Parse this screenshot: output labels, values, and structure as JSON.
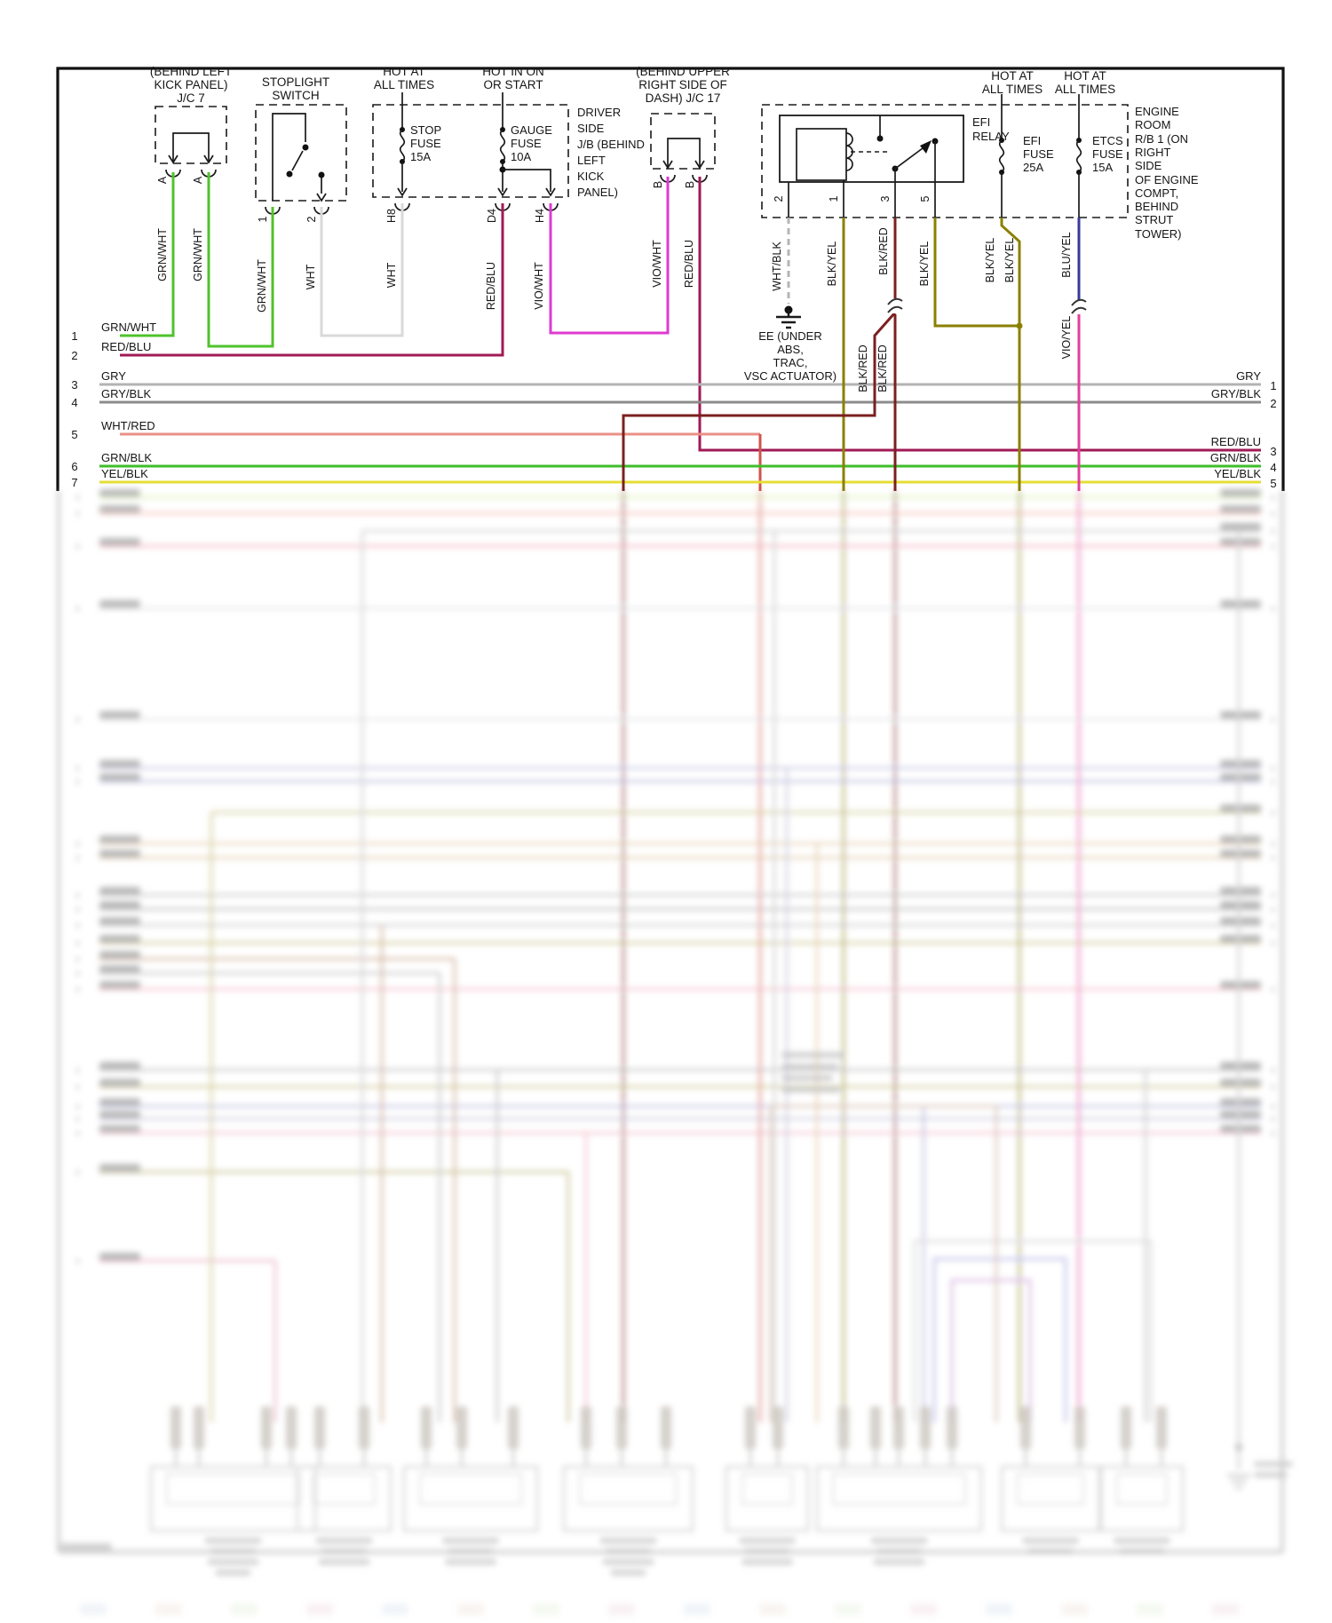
{
  "diagram": {
    "headers": {
      "jc7": [
        "(BEHIND LEFT",
        "KICK PANEL)",
        "J/C 7"
      ],
      "stoplight": [
        "STOPLIGHT",
        "SWITCH"
      ],
      "hot_stop": [
        "HOT AT",
        "ALL TIMES"
      ],
      "hot_gauge": [
        "HOT IN ON",
        "OR START"
      ],
      "jb": [
        "DRIVER",
        "SIDE",
        "J/B (BEHIND",
        "LEFT",
        "KICK",
        "PANEL)"
      ],
      "jc17": [
        "(BEHIND UPPER",
        "RIGHT SIDE OF",
        "DASH) J/C 17"
      ],
      "hot_efi": [
        "HOT AT",
        "ALL TIMES"
      ],
      "hot_etcs": [
        "HOT AT",
        "ALL TIMES"
      ],
      "efi_relay": [
        "EFI",
        "RELAY"
      ],
      "engine_room": [
        "ENGINE",
        "ROOM",
        "R/B 1 (ON",
        "RIGHT",
        "SIDE",
        "OF ENGINE",
        "COMPT,",
        "BEHIND",
        "STRUT",
        "TOWER)"
      ],
      "ee_ground": [
        "EE (UNDER",
        "ABS,",
        "TRAC,",
        "VSC ACTUATOR)"
      ]
    },
    "fuses": {
      "stop": [
        "STOP",
        "FUSE",
        "15A"
      ],
      "gauge": [
        "GAUGE",
        "FUSE",
        "10A"
      ],
      "efi": [
        "EFI",
        "FUSE",
        "25A"
      ],
      "etcs": [
        "ETCS",
        "FUSE",
        "15A"
      ]
    },
    "pins": {
      "jc7_a1": "A",
      "jc7_a2": "A",
      "sw_1": "1",
      "sw_2": "2",
      "h8": "H8",
      "d4": "D4",
      "h4": "H4",
      "jc17_b1": "B",
      "jc17_b2": "B",
      "relay_2": "2",
      "relay_1": "1",
      "relay_3": "3",
      "relay_5": "5"
    },
    "wires": {
      "grn_wht": "GRN/WHT",
      "wht": "WHT",
      "red_blu": "RED/BLU",
      "vio_wht": "VIO/WHT",
      "wht_blk": "WHT/BLK",
      "blk_yel": "BLK/YEL",
      "blk_red": "BLK/RED",
      "blu_yel": "BLU/YEL",
      "vio_yel": "VIO/YEL"
    },
    "rows_left": [
      {
        "n": "1",
        "label": "GRN/WHT"
      },
      {
        "n": "2",
        "label": "RED/BLU"
      },
      {
        "n": "3",
        "label": "GRY"
      },
      {
        "n": "4",
        "label": "GRY/BLK"
      },
      {
        "n": "5",
        "label": "WHT/RED"
      },
      {
        "n": "6",
        "label": "GRN/BLK"
      },
      {
        "n": "7",
        "label": "YEL/BLK"
      }
    ],
    "rows_right": [
      {
        "n": "1",
        "label": "GRY"
      },
      {
        "n": "2",
        "label": "GRY/BLK"
      },
      {
        "n": "3",
        "label": "RED/BLU"
      },
      {
        "n": "4",
        "label": "GRN/BLK"
      },
      {
        "n": "5",
        "label": "YEL/BLK"
      }
    ],
    "colors": {
      "grn_wht": "#4fc32d",
      "red_blu": "#a01a55",
      "wht": "#d9d9d9",
      "vio_wht": "#de3bd0",
      "gry": "#b3b3b3",
      "gry_blk": "#8c8c8c",
      "wht_red": "#ea8f85",
      "grn_blk": "#3fbe2b",
      "yel_blk": "#e5de36",
      "blk_yel": "#8a8000",
      "blk_red": "#7b2020",
      "blu_yel": "#3a3a9c",
      "vio_yel": "#e23d9d",
      "wht_blk": "#b5b5b5"
    }
  }
}
